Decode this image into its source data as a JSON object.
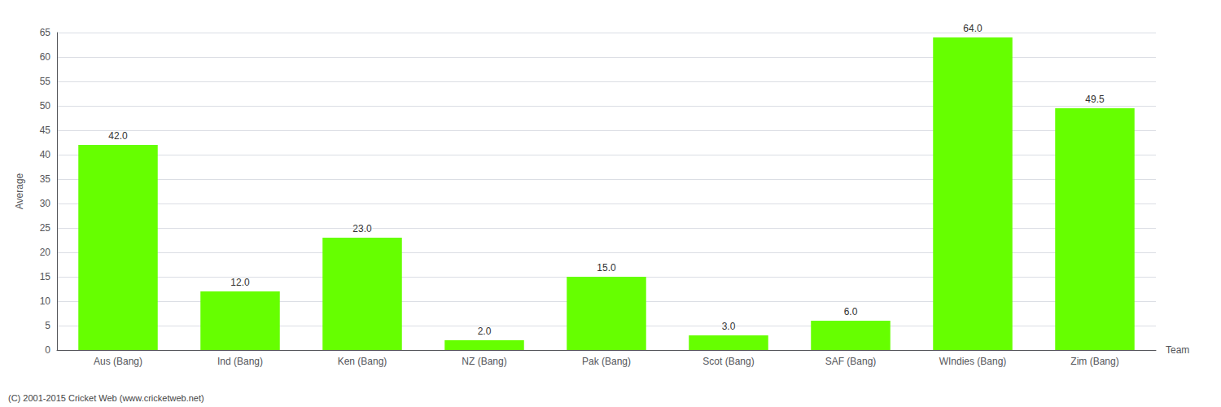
{
  "chart_data": {
    "type": "bar",
    "xlabel": "Team",
    "ylabel": "Average",
    "categories": [
      "Aus (Bang)",
      "Ind (Bang)",
      "Ken (Bang)",
      "NZ (Bang)",
      "Pak (Bang)",
      "Scot (Bang)",
      "SAF (Bang)",
      "WIndies (Bang)",
      "Zim (Bang)"
    ],
    "values": [
      42.0,
      12.0,
      23.0,
      2.0,
      15.0,
      3.0,
      6.0,
      64.0,
      49.5
    ],
    "value_labels": [
      "42.0",
      "12.0",
      "23.0",
      "2.0",
      "15.0",
      "3.0",
      "6.0",
      "64.0",
      "49.5"
    ],
    "data_labels": true,
    "color": "#66ff00",
    "ylim": [
      0,
      65
    ],
    "yticks": [
      0,
      5,
      10,
      15,
      20,
      25,
      30,
      35,
      40,
      45,
      50,
      55,
      60,
      65
    ],
    "grid": true,
    "annotations": [
      "(C) 2001-2015 Cricket Web (www.cricketweb.net)"
    ]
  }
}
